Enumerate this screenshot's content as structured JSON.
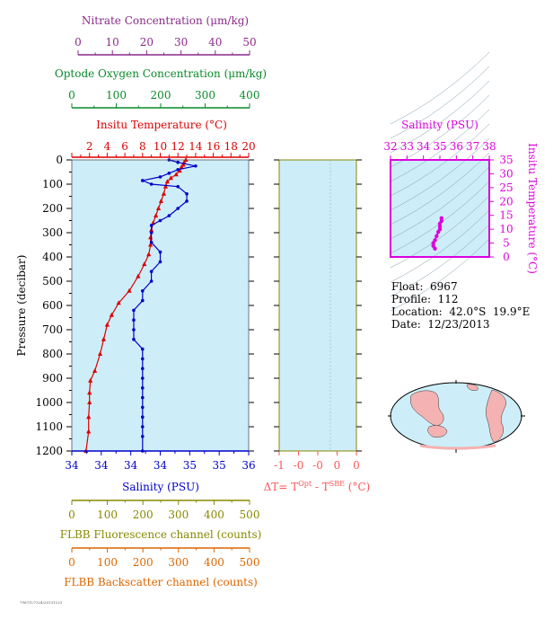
{
  "axes": {
    "nitrate": {
      "label": "Nitrate Concentration (μm/kg)",
      "ticks": [
        "0",
        "10",
        "20",
        "30",
        "40",
        "50"
      ],
      "range": [
        0,
        50
      ],
      "color": "#8a2a8a"
    },
    "oxygen": {
      "label": "Optode Oxygen Concentration (μm/kg)",
      "ticks": [
        "0",
        "100",
        "200",
        "300",
        "400"
      ],
      "range": [
        0,
        400
      ],
      "color": "#0a8a2a"
    },
    "temperature": {
      "label": "Insitu Temperature (°C)",
      "ticks": [
        "2",
        "4",
        "6",
        "8",
        "10",
        "12",
        "14",
        "16",
        "18",
        "20"
      ],
      "range": [
        0,
        20
      ],
      "color": "#dd0000"
    },
    "pressure": {
      "label": "Pressure (decibar)",
      "ticks": [
        "0",
        "100",
        "200",
        "300",
        "400",
        "500",
        "600",
        "700",
        "800",
        "900",
        "1000",
        "1100",
        "1200"
      ],
      "range": [
        0,
        1200
      ],
      "color": "#000000"
    },
    "salinity": {
      "label": "Salinity (PSU)",
      "ticks": [
        "34",
        "34",
        "34",
        "34",
        "35",
        "35",
        "36"
      ],
      "range": [
        33.9,
        35.9
      ],
      "color": "#0000cc"
    },
    "delta_t": {
      "label_prefix": "ΔT= T",
      "sup1": "Opt",
      "mid": " - T",
      "sup2": "SBE",
      "suffix": " (°C)",
      "ticks": [
        "-1",
        "-0",
        "-0",
        "0",
        "0"
      ],
      "color": "#ff5555"
    },
    "fluorescence": {
      "label": "FLBB Fluorescence channel (counts)",
      "ticks": [
        "0",
        "100",
        "200",
        "300",
        "400",
        "500"
      ],
      "color": "#888800"
    },
    "backscatter": {
      "label": "FLBB Backscatter channel (counts)",
      "ticks": [
        "0",
        "100",
        "200",
        "300",
        "400",
        "500"
      ],
      "color": "#dd6600"
    }
  },
  "ts_diagram": {
    "title": "Salinity (PSU)",
    "x_ticks": [
      "32",
      "33",
      "34",
      "35",
      "36",
      "37",
      "38"
    ],
    "y_ticks": [
      "0",
      "5",
      "10",
      "15",
      "20",
      "25",
      "30",
      "35"
    ],
    "ylabel": "Insitu Temperature (°C)",
    "xrange": [
      32,
      38
    ],
    "yrange": [
      0,
      35
    ],
    "color": "#dd00dd"
  },
  "float_info": {
    "float": "Float:  6967",
    "profile": "Profile:  112",
    "location": "Location:  42.0°S  19.9°E",
    "date": "Date:  12/23/2013"
  },
  "footer_text": "7967/1/7324/20131223",
  "colors": {
    "plot_bg": "#cdeef8",
    "temperature": "#dd0000",
    "salinity": "#0000cc",
    "ts": "#dd00dd"
  },
  "chart_data": {
    "type": "line",
    "y_axis": "pressure_decibar",
    "series": [
      {
        "name": "Insitu Temperature",
        "x_units": "°C",
        "points": [
          [
            12.9,
            0
          ],
          [
            12.7,
            10
          ],
          [
            12.6,
            20
          ],
          [
            12.4,
            30
          ],
          [
            12.2,
            45
          ],
          [
            11.8,
            60
          ],
          [
            11.2,
            75
          ],
          [
            10.8,
            90
          ],
          [
            10.6,
            110
          ],
          [
            10.4,
            140
          ],
          [
            10.1,
            170
          ],
          [
            9.8,
            200
          ],
          [
            9.5,
            230
          ],
          [
            9.2,
            260
          ],
          [
            9.0,
            290
          ],
          [
            8.9,
            320
          ],
          [
            8.9,
            350
          ],
          [
            8.7,
            390
          ],
          [
            8.2,
            430
          ],
          [
            7.5,
            480
          ],
          [
            6.5,
            540
          ],
          [
            5.3,
            590
          ],
          [
            4.5,
            640
          ],
          [
            4.0,
            680
          ],
          [
            3.6,
            740
          ],
          [
            3.2,
            800
          ],
          [
            2.6,
            870
          ],
          [
            2.1,
            910
          ],
          [
            2.0,
            960
          ],
          [
            2.0,
            1000
          ],
          [
            1.9,
            1060
          ],
          [
            1.9,
            1120
          ],
          [
            1.6,
            1200
          ]
        ]
      },
      {
        "name": "Salinity",
        "x_units": "PSU",
        "points": [
          [
            35.0,
            0
          ],
          [
            35.1,
            10
          ],
          [
            35.3,
            25
          ],
          [
            35.1,
            40
          ],
          [
            35.0,
            55
          ],
          [
            34.9,
            70
          ],
          [
            34.7,
            85
          ],
          [
            34.8,
            100
          ],
          [
            35.1,
            110
          ],
          [
            35.2,
            140
          ],
          [
            35.2,
            170
          ],
          [
            35.1,
            200
          ],
          [
            35.0,
            230
          ],
          [
            34.9,
            250
          ],
          [
            34.8,
            270
          ],
          [
            34.8,
            300
          ],
          [
            34.8,
            340
          ],
          [
            34.9,
            380
          ],
          [
            34.9,
            420
          ],
          [
            34.8,
            460
          ],
          [
            34.8,
            500
          ],
          [
            34.7,
            540
          ],
          [
            34.7,
            580
          ],
          [
            34.6,
            620
          ],
          [
            34.6,
            660
          ],
          [
            34.6,
            700
          ],
          [
            34.6,
            740
          ],
          [
            34.7,
            780
          ],
          [
            34.7,
            820
          ],
          [
            34.7,
            860
          ],
          [
            34.7,
            900
          ],
          [
            34.7,
            940
          ],
          [
            34.7,
            980
          ],
          [
            34.7,
            1020
          ],
          [
            34.7,
            1060
          ],
          [
            34.7,
            1100
          ],
          [
            34.7,
            1140
          ],
          [
            34.7,
            1200
          ]
        ]
      },
      {
        "name": "T-S",
        "x_units": "PSU",
        "y_units": "°C",
        "points": [
          [
            34.7,
            3.0
          ],
          [
            34.6,
            4.0
          ],
          [
            34.6,
            5.0
          ],
          [
            34.7,
            6.0
          ],
          [
            34.8,
            7.5
          ],
          [
            34.9,
            9.0
          ],
          [
            35.0,
            10.0
          ],
          [
            35.0,
            11.0
          ],
          [
            35.0,
            12.0
          ],
          [
            35.1,
            13.0
          ],
          [
            35.1,
            14.0
          ]
        ]
      }
    ]
  }
}
